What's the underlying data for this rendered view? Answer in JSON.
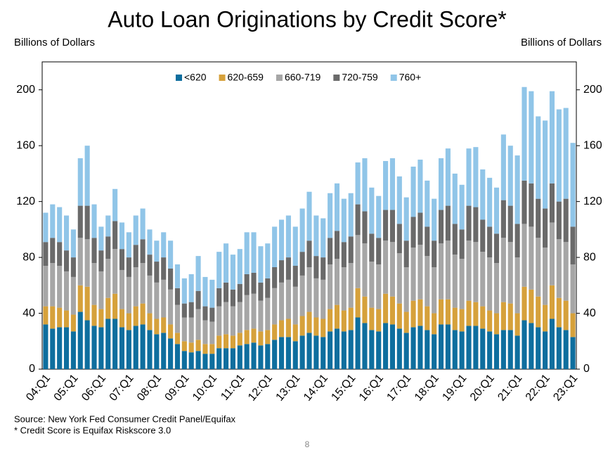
{
  "chart_data": {
    "type": "bar",
    "stacked": true,
    "title": "Auto Loan Originations by Credit Score*",
    "y_label": "Billions of Dollars",
    "y2_label": "Billions of Dollars",
    "categories": [
      "04:Q1",
      null,
      null,
      null,
      "05:Q1",
      null,
      null,
      null,
      "06:Q1",
      null,
      null,
      null,
      "07:Q1",
      null,
      null,
      null,
      "08:Q1",
      null,
      null,
      null,
      "09:Q1",
      null,
      null,
      null,
      "10:Q1",
      null,
      null,
      null,
      "11:Q1",
      null,
      null,
      null,
      "12:Q1",
      null,
      null,
      null,
      "13:Q1",
      null,
      null,
      null,
      "14:Q1",
      null,
      null,
      null,
      "15:Q1",
      null,
      null,
      null,
      "16:Q1",
      null,
      null,
      null,
      "17:Q1",
      null,
      null,
      null,
      "18:Q1",
      null,
      null,
      null,
      "19:Q1",
      null,
      null,
      null,
      "20:Q1",
      null,
      null,
      null,
      "21:Q1",
      null,
      null,
      null,
      "22:Q1",
      null,
      null,
      null,
      "23:Q1"
    ],
    "series": [
      {
        "name": "<620",
        "color": "#0e6e9e",
        "values": [
          32,
          29,
          30,
          30,
          27,
          41,
          35,
          31,
          30,
          36,
          36,
          30,
          28,
          31,
          32,
          28,
          25,
          26,
          22,
          18,
          13,
          12,
          13,
          11,
          11,
          15,
          15,
          15,
          17,
          18,
          19,
          17,
          18,
          21,
          23,
          23,
          20,
          24,
          26,
          24,
          23,
          27,
          29,
          27,
          28,
          37,
          33,
          28,
          27,
          33,
          32,
          29,
          26,
          30,
          31,
          28,
          25,
          32,
          32,
          28,
          27,
          31,
          31,
          29,
          27,
          25,
          28,
          28,
          24,
          35,
          33,
          30,
          27,
          36,
          30,
          28,
          23
        ]
      },
      {
        "name": "620-659",
        "color": "#d6a13b",
        "values": [
          13,
          16,
          14,
          12,
          12,
          19,
          24,
          15,
          13,
          15,
          18,
          13,
          12,
          14,
          15,
          12,
          11,
          11,
          10,
          8,
          7,
          7,
          8,
          7,
          7,
          9,
          10,
          9,
          9,
          10,
          10,
          10,
          10,
          11,
          12,
          13,
          12,
          14,
          15,
          13,
          13,
          16,
          17,
          15,
          16,
          21,
          19,
          16,
          16,
          21,
          20,
          18,
          15,
          19,
          19,
          17,
          15,
          18,
          18,
          16,
          16,
          18,
          17,
          16,
          15,
          15,
          20,
          19,
          16,
          24,
          24,
          22,
          19,
          24,
          21,
          21,
          17
        ]
      },
      {
        "name": "660-719",
        "color": "#a6a6a6",
        "values": [
          29,
          31,
          30,
          28,
          27,
          34,
          34,
          30,
          27,
          28,
          32,
          28,
          26,
          28,
          29,
          27,
          26,
          27,
          25,
          20,
          17,
          18,
          22,
          17,
          16,
          21,
          23,
          21,
          22,
          25,
          25,
          22,
          23,
          26,
          27,
          28,
          27,
          29,
          32,
          28,
          28,
          32,
          33,
          31,
          32,
          38,
          38,
          33,
          32,
          38,
          39,
          36,
          32,
          38,
          39,
          36,
          33,
          40,
          42,
          38,
          36,
          43,
          43,
          39,
          38,
          36,
          46,
          44,
          40,
          45,
          45,
          42,
          41,
          45,
          42,
          42,
          35
        ]
      },
      {
        "name": "720-759",
        "color": "#6a6a6a",
        "values": [
          17,
          18,
          17,
          15,
          14,
          23,
          24,
          18,
          15,
          16,
          20,
          15,
          14,
          16,
          17,
          15,
          15,
          16,
          15,
          12,
          10,
          11,
          13,
          10,
          10,
          13,
          14,
          12,
          13,
          15,
          15,
          13,
          14,
          15,
          16,
          16,
          15,
          17,
          19,
          16,
          16,
          19,
          20,
          18,
          19,
          22,
          23,
          20,
          19,
          22,
          23,
          21,
          19,
          22,
          23,
          21,
          19,
          24,
          25,
          22,
          21,
          25,
          25,
          23,
          22,
          21,
          27,
          26,
          24,
          31,
          31,
          28,
          28,
          28,
          27,
          31,
          27
        ]
      },
      {
        "name": "760+",
        "color": "#90c5e8",
        "values": [
          21,
          24,
          25,
          25,
          20,
          34,
          43,
          24,
          17,
          15,
          23,
          19,
          18,
          21,
          22,
          18,
          15,
          18,
          20,
          17,
          18,
          20,
          25,
          21,
          20,
          26,
          28,
          25,
          25,
          30,
          29,
          26,
          25,
          29,
          29,
          30,
          28,
          31,
          35,
          29,
          28,
          32,
          34,
          31,
          31,
          30,
          38,
          33,
          30,
          35,
          37,
          34,
          31,
          36,
          38,
          33,
          30,
          37,
          41,
          36,
          32,
          41,
          43,
          36,
          35,
          33,
          47,
          43,
          49,
          67,
          66,
          59,
          63,
          66,
          66,
          65,
          60
        ]
      }
    ],
    "ylim": [
      0,
      220
    ],
    "yticks": [
      0,
      40,
      80,
      120,
      160,
      200
    ],
    "y2lim": [
      0,
      220
    ],
    "y2ticks": [
      0,
      40,
      80,
      120,
      160,
      200
    ],
    "legend": "top",
    "source": "Source: New York Fed Consumer Credit Panel/Equifax",
    "footnote": "* Credit Score is Equifax Riskscore 3.0"
  },
  "page_number": "8"
}
